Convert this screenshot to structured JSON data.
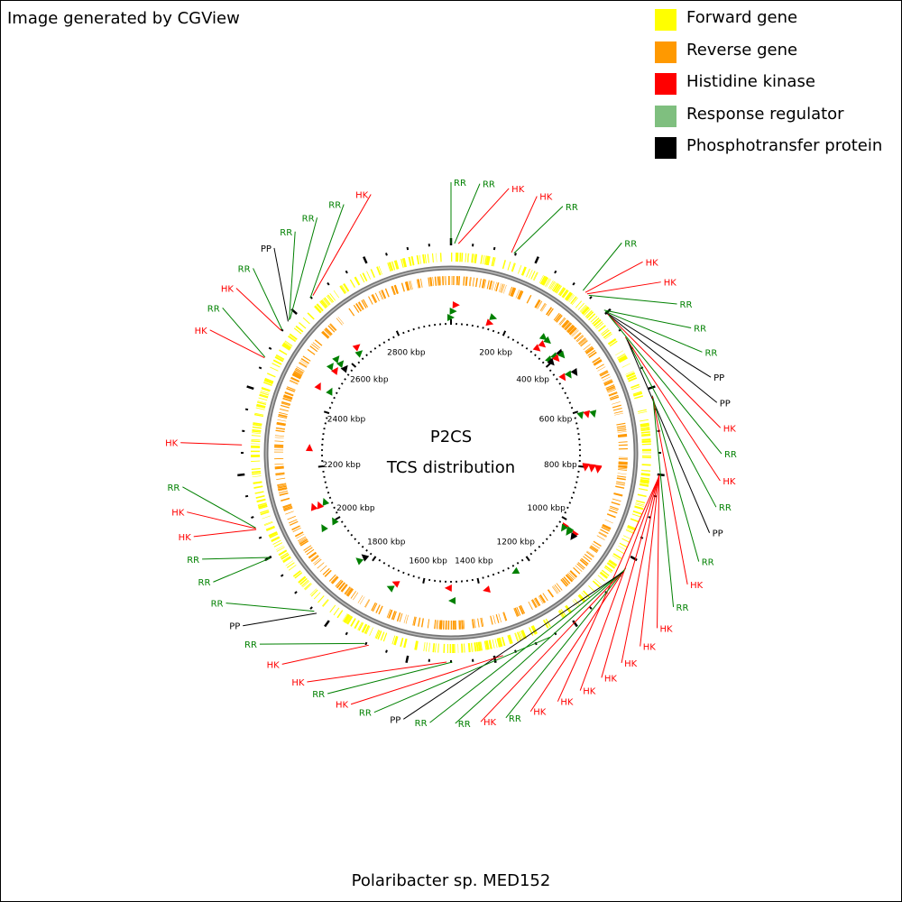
{
  "credit": "Image generated by CGView",
  "title": "P2CS",
  "subtitle": "TCS distribution",
  "organism": "Polaribacter sp. MED152",
  "legend": [
    {
      "label": "Forward gene",
      "color": "#ffff00"
    },
    {
      "label": "Reverse gene",
      "color": "#ff9900"
    },
    {
      "label": "Histidine kinase",
      "color": "#ff0000"
    },
    {
      "label": "Response regulator",
      "color": "#7fbf7f"
    },
    {
      "label": "Phosphotransfer protein",
      "color": "#000000"
    }
  ],
  "colors": {
    "HK": "#ff0000",
    "RR": "#008000",
    "PP": "#000000",
    "backbone": "#777777"
  },
  "genome_length_kbp": 3000,
  "ruler_labels": [
    "200 kbp",
    "400 kbp",
    "600 kbp",
    "800 kbp",
    "1000 kbp",
    "1200 kbp",
    "1400 kbp",
    "1600 kbp",
    "1800 kbp",
    "2000 kbp",
    "2200 kbp",
    "2400 kbp",
    "2600 kbp",
    "2800 kbp"
  ],
  "features": [
    {
      "type": "RR",
      "label": "RR",
      "kbp": 0
    },
    {
      "type": "RR",
      "label": "RR",
      "kbp": 8
    },
    {
      "type": "HK",
      "label": "HK",
      "kbp": 17
    },
    {
      "type": "HK",
      "label": "HK",
      "kbp": 140
    },
    {
      "type": "RR",
      "label": "RR",
      "kbp": 146
    },
    {
      "type": "RR",
      "label": "RR",
      "kbp": 326
    },
    {
      "type": "HK",
      "label": "HK",
      "kbp": 333
    },
    {
      "type": "HK",
      "label": "HK",
      "kbp": 338
    },
    {
      "type": "RR",
      "label": "RR",
      "kbp": 343
    },
    {
      "type": "RR",
      "label": "RR",
      "kbp": 392
    },
    {
      "type": "RR",
      "label": "RR",
      "kbp": 396
    },
    {
      "type": "PP",
      "label": "PP",
      "kbp": 400
    },
    {
      "type": "PP",
      "label": "PP",
      "kbp": 403
    },
    {
      "type": "HK",
      "label": "HK",
      "kbp": 405
    },
    {
      "type": "RR",
      "label": "RR",
      "kbp": 408
    },
    {
      "type": "HK",
      "label": "HK",
      "kbp": 470
    },
    {
      "type": "RR",
      "label": "RR",
      "kbp": 474
    },
    {
      "type": "PP",
      "label": "PP",
      "kbp": 478
    },
    {
      "type": "RR",
      "label": "RR",
      "kbp": 618
    },
    {
      "type": "HK",
      "label": "HK",
      "kbp": 620
    },
    {
      "type": "RR",
      "label": "RR",
      "kbp": 624
    },
    {
      "type": "HK",
      "label": "HK",
      "kbp": 800
    },
    {
      "type": "HK",
      "label": "HK",
      "kbp": 801
    },
    {
      "type": "HK",
      "label": "HK",
      "kbp": 802
    },
    {
      "type": "HK",
      "label": "HK",
      "kbp": 803
    },
    {
      "type": "HK",
      "label": "HK",
      "kbp": 804
    },
    {
      "type": "HK",
      "label": "HK",
      "kbp": 805
    },
    {
      "type": "HK",
      "label": "HK",
      "kbp": 1028
    },
    {
      "type": "RR",
      "label": "RR",
      "kbp": 1030
    },
    {
      "type": "HK",
      "label": "HK",
      "kbp": 1032
    },
    {
      "type": "RR",
      "label": "RR",
      "kbp": 1034
    },
    {
      "type": "RR",
      "label": "RR",
      "kbp": 1036
    },
    {
      "type": "PP",
      "label": "PP",
      "kbp": 1040
    },
    {
      "type": "RR",
      "label": "RR",
      "kbp": 1265
    },
    {
      "type": "HK",
      "label": "HK",
      "kbp": 1380
    },
    {
      "type": "RR",
      "label": "RR",
      "kbp": 1497
    },
    {
      "type": "HK",
      "label": "HK",
      "kbp": 1510
    },
    {
      "type": "HK",
      "label": "HK",
      "kbp": 1693
    },
    {
      "type": "RR",
      "label": "RR",
      "kbp": 1703
    },
    {
      "type": "PP",
      "label": "PP",
      "kbp": 1833
    },
    {
      "type": "RR",
      "label": "RR",
      "kbp": 1840
    },
    {
      "type": "RR",
      "label": "RR",
      "kbp": 1998
    },
    {
      "type": "RR",
      "label": "RR",
      "kbp": 2000
    },
    {
      "type": "HK",
      "label": "HK",
      "kbp": 2071
    },
    {
      "type": "HK",
      "label": "HK",
      "kbp": 2073
    },
    {
      "type": "RR",
      "label": "RR",
      "kbp": 2075
    },
    {
      "type": "HK",
      "label": "HK",
      "kbp": 2268
    },
    {
      "type": "HK",
      "label": "HK",
      "kbp": 2475
    },
    {
      "type": "RR",
      "label": "RR",
      "kbp": 2477
    },
    {
      "type": "HK",
      "label": "HK",
      "kbp": 2548
    },
    {
      "type": "RR",
      "label": "RR",
      "kbp": 2551
    },
    {
      "type": "PP",
      "label": "PP",
      "kbp": 2574
    },
    {
      "type": "RR",
      "label": "RR",
      "kbp": 2578
    },
    {
      "type": "RR",
      "label": "RR",
      "kbp": 2581
    },
    {
      "type": "RR",
      "label": "RR",
      "kbp": 2648
    },
    {
      "type": "HK",
      "label": "HK",
      "kbp": 2656
    }
  ]
}
